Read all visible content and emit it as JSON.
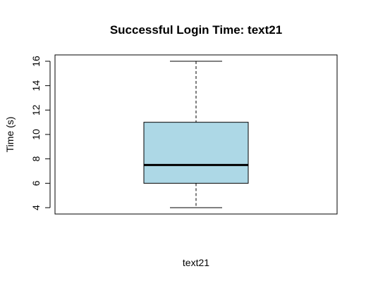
{
  "chart_data": {
    "type": "boxplot",
    "title": "Successful Login Time: text21",
    "xlabel": "text21",
    "ylabel": "Time (s)",
    "ylim": [
      4,
      16
    ],
    "yticks": [
      4,
      6,
      8,
      10,
      12,
      14,
      16
    ],
    "grid": false,
    "legend": "none",
    "series": [
      {
        "min": 4,
        "q1": 6,
        "median": 7.5,
        "q3": 11,
        "max": 16
      }
    ],
    "colors": {
      "box_fill": "#add8e6",
      "stroke": "#000000"
    }
  }
}
